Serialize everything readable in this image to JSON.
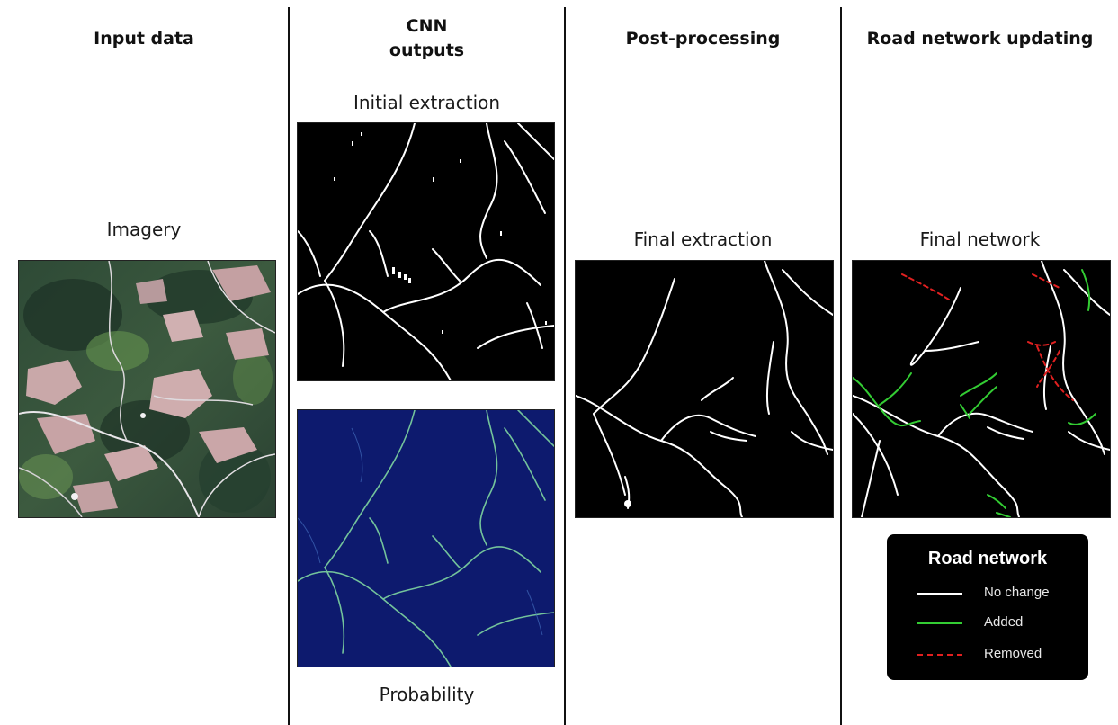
{
  "columns": [
    {
      "title": "Input data"
    },
    {
      "title": "CNN\noutputs"
    },
    {
      "title": "Post-processing"
    },
    {
      "title": "Road network updating"
    }
  ],
  "panels": {
    "imagery": {
      "label": "Imagery"
    },
    "initial_extraction": {
      "label": "Initial extraction"
    },
    "probability": {
      "label": "Probability"
    },
    "final_extraction": {
      "label": "Final extraction"
    },
    "final_network": {
      "label": "Final network"
    }
  },
  "legend": {
    "title": "Road network",
    "items": [
      {
        "label": "No change",
        "color": "#ffffff",
        "style": "solid"
      },
      {
        "label": "Added",
        "color": "#33cc33",
        "style": "solid"
      },
      {
        "label": "Removed",
        "color": "#e02020",
        "style": "dashed"
      }
    ]
  },
  "colors": {
    "probability_background": "#0d1a6e",
    "probability_road": "#7fd6a0",
    "extraction_background": "#000000",
    "road": "#ffffff"
  }
}
